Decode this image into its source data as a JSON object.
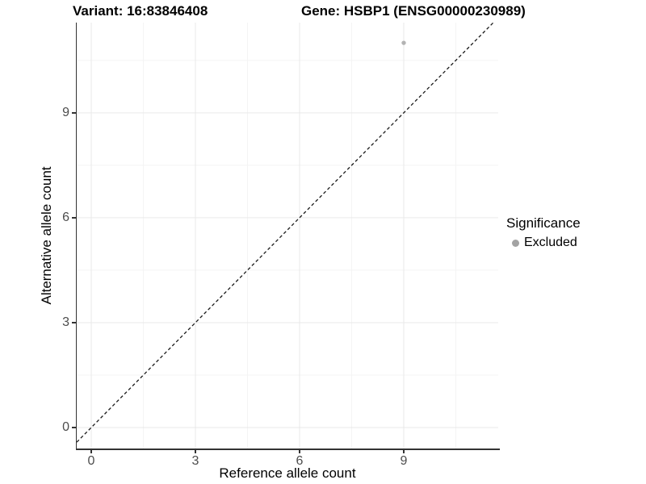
{
  "titles": {
    "left": "Variant: 16:83846408",
    "right": "Gene: HSBP1 (ENSG00000230989)"
  },
  "legend": {
    "title": "Significance",
    "items": [
      {
        "label": "Excluded",
        "color": "#a3a3a3"
      }
    ]
  },
  "chart_data": {
    "type": "scatter",
    "title": "Variant: 16:83846408 — Gene: HSBP1 (ENSG00000230989)",
    "xlabel": "Reference allele count",
    "ylabel": "Alternative allele count",
    "xlim": [
      -0.55,
      11.55
    ],
    "ylim": [
      -0.55,
      11.55
    ],
    "x_ticks": [
      0,
      3,
      6,
      9
    ],
    "y_ticks": [
      0,
      3,
      6,
      9
    ],
    "x_minor_ticks": [
      1.5,
      4.5,
      7.5,
      10.5
    ],
    "y_minor_ticks": [
      1.5,
      4.5,
      7.5,
      10.5
    ],
    "grid": true,
    "legend_position": "right",
    "series": [
      {
        "name": "Excluded",
        "color": "#b3b3b3",
        "points": [
          {
            "x": 9,
            "y": 11
          }
        ]
      }
    ],
    "reference_line": {
      "type": "identity",
      "equation": "y = x",
      "style": "dashed",
      "color": "#1a1a1a"
    },
    "style": {
      "grid_major_color": "#e9e9e9",
      "grid_minor_color": "#f4f4f4",
      "axis_color": "#333333",
      "tick_label_color": "#4d4d4d",
      "background": "#ffffff"
    }
  }
}
